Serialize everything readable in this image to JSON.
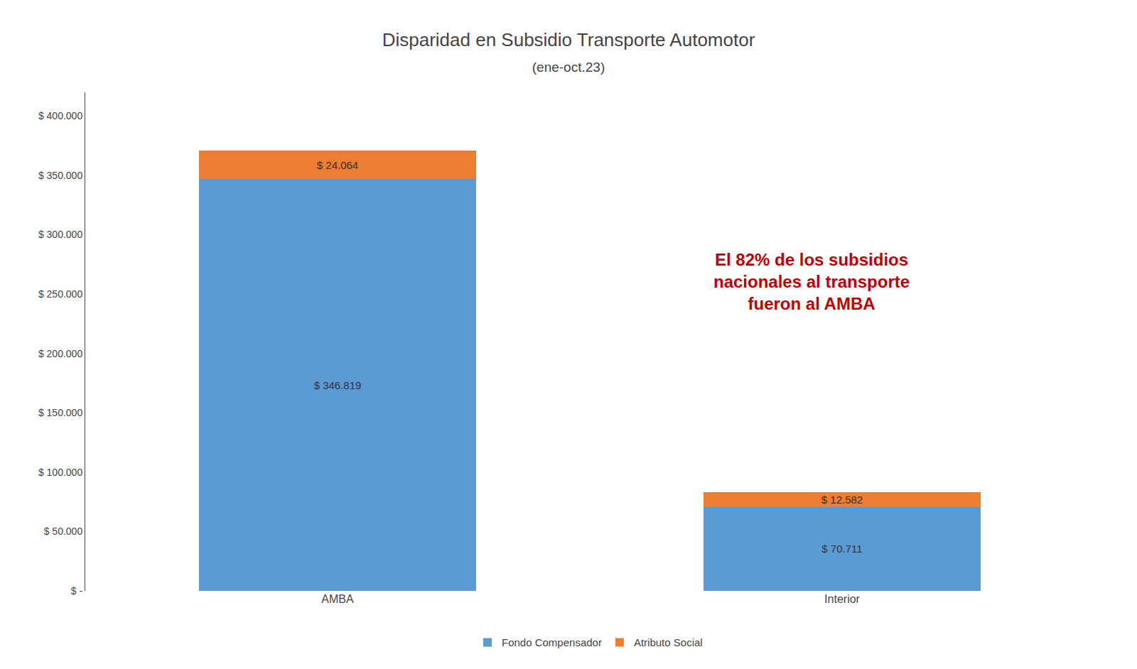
{
  "chart_data": {
    "type": "bar",
    "stacked": true,
    "title": "Disparidad en Subsidio Transporte Automotor",
    "subtitle": "(ene-oct.23)",
    "categories": [
      "AMBA",
      "Interior"
    ],
    "series": [
      {
        "name": "Fondo Compensador",
        "color": "#5B9BD5",
        "values": [
          346819,
          70711
        ],
        "value_labels": [
          "$ 346.819",
          "$ 70.711"
        ]
      },
      {
        "name": "Atributo Social",
        "color": "#ED7D31",
        "values": [
          24064,
          12582
        ],
        "value_labels": [
          "$ 24.064",
          "$ 12.582"
        ]
      }
    ],
    "ylim": [
      0,
      420000
    ],
    "yticks": [
      {
        "value": 0,
        "label": "$ -"
      },
      {
        "value": 50000,
        "label": "$ 50.000"
      },
      {
        "value": 100000,
        "label": "$ 100.000"
      },
      {
        "value": 150000,
        "label": "$ 150.000"
      },
      {
        "value": 200000,
        "label": "$ 200.000"
      },
      {
        "value": 250000,
        "label": "$ 250.000"
      },
      {
        "value": 300000,
        "label": "$ 300.000"
      },
      {
        "value": 350000,
        "label": "$ 350.000"
      },
      {
        "value": 400000,
        "label": "$ 400.000"
      }
    ],
    "annotations": [
      {
        "text": "El 82% de los subsidios\nnacionales al transporte\nfueron al AMBA",
        "color": "#C00000"
      }
    ],
    "data_labels": true,
    "grid": false,
    "legend": "bottom"
  }
}
